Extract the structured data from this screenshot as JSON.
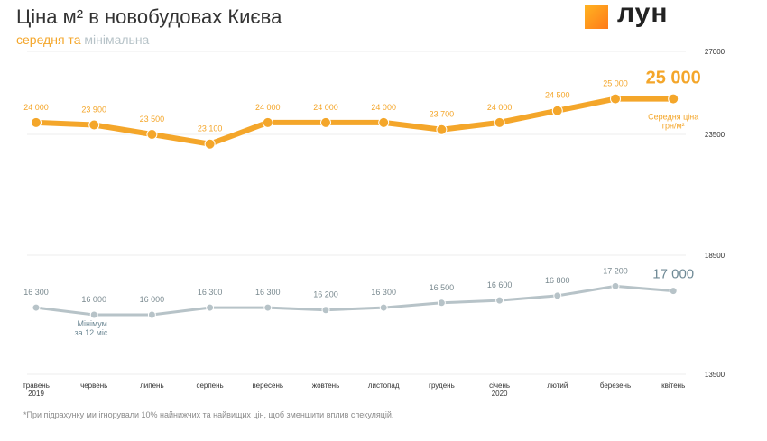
{
  "header": {
    "title": "Ціна м² в новобудовах Києва",
    "subtitle_avg": "середня",
    "subtitle_and": " та ",
    "subtitle_min": "мінімальна"
  },
  "logo": {
    "text": "лун",
    "icon": "lun-logo-square-icon"
  },
  "footnote": "*При підрахунку ми ігнорували 10% найнижчих та найвищих цін, щоб зменшити вплив спекуляцій.",
  "chart_data": {
    "type": "line",
    "categories": [
      [
        "травень",
        "2019"
      ],
      [
        "червень"
      ],
      [
        "липень"
      ],
      [
        "серпень"
      ],
      [
        "вересень"
      ],
      [
        "жовтень"
      ],
      [
        "листопад"
      ],
      [
        "грудень"
      ],
      [
        "січень",
        "2020"
      ],
      [
        "лютий"
      ],
      [
        "березень"
      ],
      [
        "квітень"
      ]
    ],
    "y_ticks": [
      "27000",
      "23500",
      "18500",
      "13500"
    ],
    "y_tick_values": [
      27000,
      23500,
      18500,
      13500
    ],
    "series": [
      {
        "key": "average",
        "color": "#f4a62a",
        "values": [
          24000,
          23900,
          23500,
          23100,
          24000,
          24000,
          24000,
          23700,
          24000,
          24500,
          25000,
          25000
        ],
        "labels": [
          "24 000",
          "23 900",
          "23 500",
          "23 100",
          "24 000",
          "24 000",
          "24 000",
          "23 700",
          "24 000",
          "24 500",
          "25 000",
          "25 000"
        ],
        "side_label": [
          "Середня ціна",
          "грн/м²"
        ]
      },
      {
        "key": "minimum",
        "color": "#b7c3c8",
        "values": [
          16300,
          16000,
          16000,
          16300,
          16300,
          16200,
          16300,
          16500,
          16600,
          16800,
          17200,
          17000
        ],
        "labels": [
          "16 300",
          "16 000",
          "16 000",
          "16 300",
          "16 300",
          "16 200",
          "16 300",
          "16 500",
          "16 600",
          "16 800",
          "17 200",
          "17 000"
        ],
        "note": [
          "Мінімум",
          "за 12 міс."
        ]
      }
    ],
    "grid": true
  }
}
